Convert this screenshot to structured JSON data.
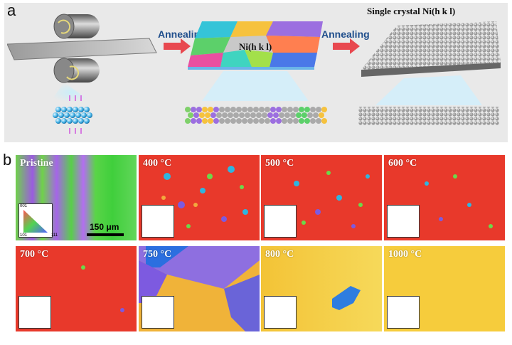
{
  "panel_a": {
    "label": "a",
    "annealing_1": "Annealing",
    "annealing_2": "Annealing",
    "polycrystal_label": "Ni(h k l)",
    "single_crystal_title": "Single crystal Ni(h k l)"
  },
  "panel_b": {
    "label": "b",
    "scale_bar": "150 μm",
    "ipf_corners": {
      "top": "001",
      "bottom_left": "101",
      "bottom_right": "111"
    },
    "tiles": [
      {
        "label": "Pristine"
      },
      {
        "label": "400 °C"
      },
      {
        "label": "500 °C"
      },
      {
        "label": "600 °C"
      },
      {
        "label": "700 °C"
      },
      {
        "label": "750 °C"
      },
      {
        "label": "800 °C"
      },
      {
        "label": "1000 °C"
      }
    ]
  },
  "colors": {
    "accent_arrow": "#e8484f",
    "red_grain": "#e8392b",
    "yellow_grain": "#f3c336",
    "blue_grain": "#2f7de0"
  }
}
